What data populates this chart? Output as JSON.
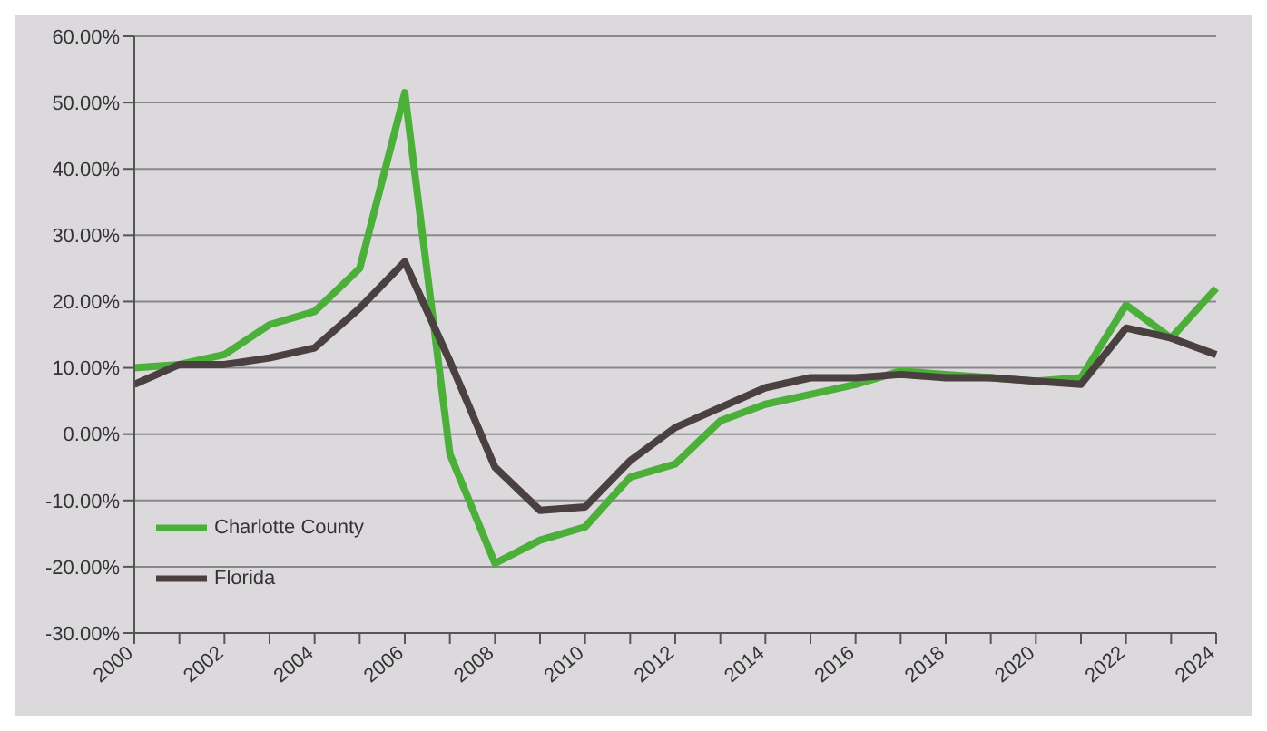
{
  "chart_data": {
    "type": "line",
    "categories": [
      "2000",
      null,
      "2002",
      null,
      "2004",
      null,
      "2006",
      null,
      "2008",
      null,
      "2010",
      null,
      "2012",
      null,
      "2014",
      null,
      "2016",
      null,
      "2018",
      null,
      "2020",
      null,
      "2022",
      null,
      "2024"
    ],
    "series": [
      {
        "name": "Charlotte County",
        "color": "#4caf3a",
        "values": [
          10,
          10.5,
          12,
          16.5,
          18.5,
          25,
          51.5,
          -3,
          -19.5,
          -16,
          -14,
          -6.5,
          -4.5,
          2,
          4.5,
          6,
          7.5,
          9.5,
          9,
          8.5,
          8,
          8.5,
          19.5,
          14.5,
          22
        ]
      },
      {
        "name": "Florida",
        "color": "#4a4040",
        "values": [
          7.5,
          10.5,
          10.5,
          11.5,
          13,
          19,
          26,
          11,
          -5,
          -11.5,
          -11,
          -4,
          1,
          4,
          7,
          8.5,
          8.5,
          9,
          8.5,
          8.5,
          8,
          7.5,
          16,
          14.5,
          12
        ]
      }
    ],
    "ylim": [
      -30,
      60
    ],
    "yticks": [
      {
        "value": -30,
        "label": "-30.00%"
      },
      {
        "value": -20,
        "label": "-20.00%"
      },
      {
        "value": -10,
        "label": "-10.00%"
      },
      {
        "value": 0,
        "label": "0.00%"
      },
      {
        "value": 10,
        "label": "10.00%"
      },
      {
        "value": 20,
        "label": "20.00%"
      },
      {
        "value": 30,
        "label": "30.00%"
      },
      {
        "value": 40,
        "label": "40.00%"
      },
      {
        "value": 50,
        "label": "50.00%"
      },
      {
        "value": 60,
        "label": "60.00%"
      }
    ],
    "grid": "y",
    "legend": "bottom left",
    "marker": "none",
    "line_style": "solid"
  }
}
